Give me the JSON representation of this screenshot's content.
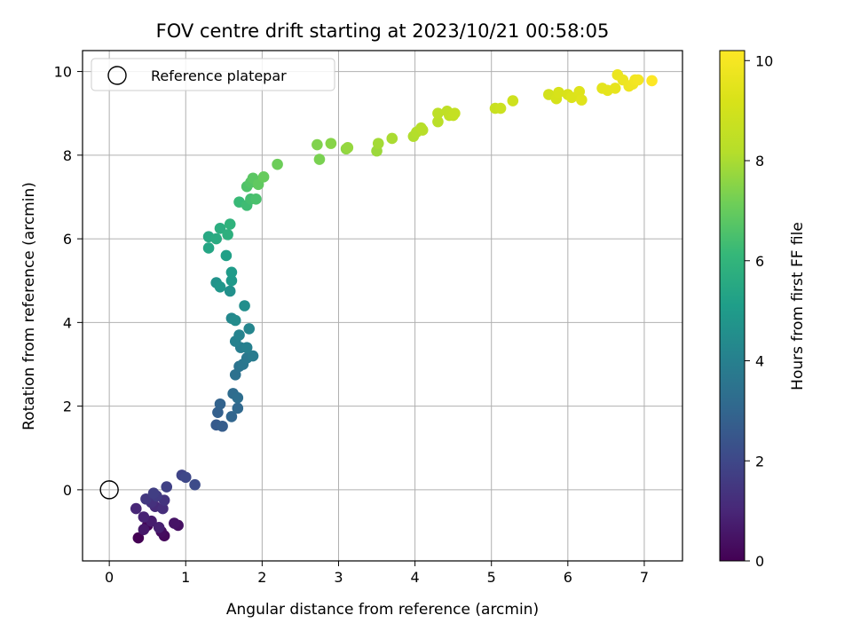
{
  "chart_data": {
    "type": "scatter",
    "title": "FOV centre drift starting at 2023/10/21 00:58:05",
    "xlabel": "Angular distance from reference (arcmin)",
    "ylabel": "Rotation from reference (arcmin)",
    "xlim": [
      -0.35,
      7.5
    ],
    "ylim": [
      -1.7,
      10.5
    ],
    "xticks": [
      0,
      1,
      2,
      3,
      4,
      5,
      6,
      7
    ],
    "yticks": [
      0,
      2,
      4,
      6,
      8,
      10
    ],
    "grid": true,
    "legend": {
      "position": "top-left",
      "entries": [
        {
          "label": "Reference platepar",
          "marker": "open-circle",
          "color": "#000000"
        }
      ]
    },
    "reference_point": {
      "x": 0,
      "y": 0
    },
    "colorbar": {
      "label": "Hours from first FF file",
      "colormap": "viridis",
      "range": [
        0,
        10.2
      ],
      "ticks": [
        0,
        2,
        4,
        6,
        8,
        10
      ]
    },
    "points": [
      [
        0.38,
        -1.15,
        0.0
      ],
      [
        0.5,
        -0.85,
        0.1
      ],
      [
        0.72,
        -1.1,
        0.2
      ],
      [
        0.68,
        -1.0,
        0.3
      ],
      [
        0.9,
        -0.85,
        0.4
      ],
      [
        0.85,
        -0.8,
        0.5
      ],
      [
        0.45,
        -0.95,
        0.6
      ],
      [
        0.55,
        -0.75,
        0.7
      ],
      [
        0.65,
        -0.9,
        0.8
      ],
      [
        0.45,
        -0.65,
        0.9
      ],
      [
        0.35,
        -0.45,
        1.0
      ],
      [
        0.6,
        -0.4,
        1.1
      ],
      [
        0.7,
        -0.45,
        1.2
      ],
      [
        0.55,
        -0.3,
        1.3
      ],
      [
        0.72,
        -0.25,
        1.4
      ],
      [
        0.48,
        -0.22,
        1.5
      ],
      [
        0.62,
        -0.15,
        1.6
      ],
      [
        0.58,
        -0.08,
        1.7
      ],
      [
        0.75,
        0.07,
        1.8
      ],
      [
        0.95,
        0.35,
        1.9
      ],
      [
        1.0,
        0.3,
        2.0
      ],
      [
        1.12,
        0.12,
        2.1
      ],
      [
        1.4,
        1.55,
        2.6
      ],
      [
        1.48,
        1.52,
        2.7
      ],
      [
        1.42,
        1.85,
        2.8
      ],
      [
        1.45,
        2.05,
        2.9
      ],
      [
        1.6,
        1.75,
        3.0
      ],
      [
        1.68,
        1.95,
        3.1
      ],
      [
        1.62,
        2.3,
        3.2
      ],
      [
        1.68,
        2.2,
        3.3
      ],
      [
        1.65,
        2.75,
        3.4
      ],
      [
        1.7,
        2.95,
        3.5
      ],
      [
        1.75,
        3.0,
        3.6
      ],
      [
        1.8,
        3.15,
        3.7
      ],
      [
        1.88,
        3.2,
        3.8
      ],
      [
        1.72,
        3.4,
        3.9
      ],
      [
        1.8,
        3.4,
        4.0
      ],
      [
        1.65,
        3.55,
        4.05
      ],
      [
        1.7,
        3.7,
        4.1
      ],
      [
        1.83,
        3.85,
        4.2
      ],
      [
        1.6,
        4.1,
        4.3
      ],
      [
        1.65,
        4.05,
        4.4
      ],
      [
        1.77,
        4.4,
        4.5
      ],
      [
        1.58,
        4.75,
        4.6
      ],
      [
        1.4,
        4.95,
        4.7
      ],
      [
        1.45,
        4.85,
        4.8
      ],
      [
        1.6,
        5.0,
        4.9
      ],
      [
        1.6,
        5.2,
        5.0
      ],
      [
        1.53,
        5.6,
        5.2
      ],
      [
        1.3,
        5.78,
        5.4
      ],
      [
        1.3,
        6.05,
        5.5
      ],
      [
        1.4,
        6.0,
        5.6
      ],
      [
        1.45,
        6.25,
        5.7
      ],
      [
        1.55,
        6.1,
        5.8
      ],
      [
        1.58,
        6.35,
        5.9
      ],
      [
        1.7,
        6.88,
        6.2
      ],
      [
        1.8,
        6.8,
        6.3
      ],
      [
        1.85,
        6.95,
        6.4
      ],
      [
        1.92,
        6.95,
        6.5
      ],
      [
        1.8,
        7.25,
        6.6
      ],
      [
        1.85,
        7.35,
        6.7
      ],
      [
        1.88,
        7.45,
        6.8
      ],
      [
        1.95,
        7.3,
        6.9
      ],
      [
        2.02,
        7.48,
        7.0
      ],
      [
        2.2,
        7.78,
        7.1
      ],
      [
        2.75,
        7.9,
        7.3
      ],
      [
        2.72,
        8.25,
        7.4
      ],
      [
        2.9,
        8.28,
        7.5
      ],
      [
        3.1,
        8.15,
        7.6
      ],
      [
        3.12,
        8.18,
        7.7
      ],
      [
        3.5,
        8.1,
        7.8
      ],
      [
        3.52,
        8.28,
        7.9
      ],
      [
        3.7,
        8.4,
        8.0
      ],
      [
        3.98,
        8.45,
        8.1
      ],
      [
        4.02,
        8.55,
        8.15
      ],
      [
        4.08,
        8.65,
        8.2
      ],
      [
        4.1,
        8.6,
        8.25
      ],
      [
        4.3,
        8.8,
        8.3
      ],
      [
        4.3,
        9.0,
        8.4
      ],
      [
        4.42,
        9.05,
        8.45
      ],
      [
        4.45,
        8.95,
        8.5
      ],
      [
        4.5,
        8.95,
        8.55
      ],
      [
        4.52,
        9.0,
        8.6
      ],
      [
        5.05,
        9.12,
        8.7
      ],
      [
        5.12,
        9.12,
        8.8
      ],
      [
        5.28,
        9.3,
        8.9
      ],
      [
        5.75,
        9.45,
        9.0
      ],
      [
        5.85,
        9.35,
        9.1
      ],
      [
        5.88,
        9.5,
        9.15
      ],
      [
        6.0,
        9.45,
        9.2
      ],
      [
        6.05,
        9.38,
        9.3
      ],
      [
        6.15,
        9.52,
        9.35
      ],
      [
        6.18,
        9.32,
        9.4
      ],
      [
        6.45,
        9.6,
        9.5
      ],
      [
        6.52,
        9.55,
        9.55
      ],
      [
        6.62,
        9.6,
        9.6
      ],
      [
        6.65,
        9.92,
        9.7
      ],
      [
        6.72,
        9.8,
        9.75
      ],
      [
        6.8,
        9.65,
        9.8
      ],
      [
        6.85,
        9.7,
        9.85
      ],
      [
        6.88,
        9.8,
        9.9
      ],
      [
        6.92,
        9.8,
        9.95
      ],
      [
        7.1,
        9.78,
        10.2
      ]
    ]
  }
}
